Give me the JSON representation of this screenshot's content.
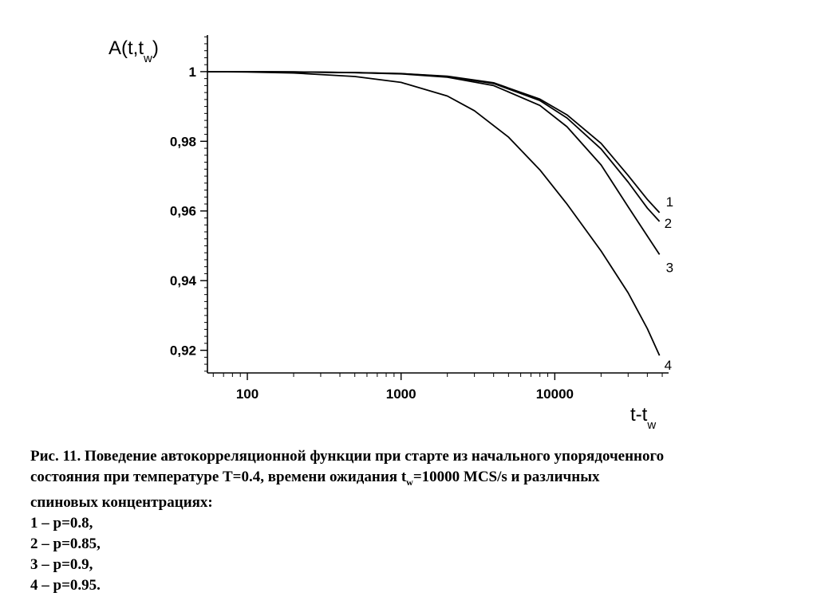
{
  "chart_data": {
    "type": "line",
    "xscale": "log",
    "xlim": [
      55,
      55000
    ],
    "ylim": [
      0.9135,
      1.0105
    ],
    "ylabel": {
      "main": "A(t,t",
      "sub": "w",
      "close": ")"
    },
    "xlabel": {
      "main": "t-t",
      "sub": "w"
    },
    "x_ticks": [
      100,
      1000,
      10000
    ],
    "x_tick_labels": [
      "100",
      "1000",
      "10000"
    ],
    "y_ticks": [
      0.92,
      0.94,
      0.96,
      0.98,
      1.0
    ],
    "y_tick_labels": [
      "0,92",
      "0,94",
      "0,96",
      "0,98",
      "1"
    ],
    "series": [
      {
        "name": "1",
        "x": [
          55,
          100,
          200,
          500,
          1000,
          2000,
          4000,
          8000,
          12000,
          20000,
          30000,
          40000,
          48000
        ],
        "y": [
          1.0,
          0.99998,
          0.9999,
          0.99975,
          0.99945,
          0.9987,
          0.9968,
          0.9921,
          0.9876,
          0.9794,
          0.9702,
          0.9633,
          0.9595
        ]
      },
      {
        "name": "2",
        "x": [
          55,
          100,
          200,
          500,
          1000,
          2000,
          4000,
          8000,
          12000,
          20000,
          30000,
          40000,
          48000
        ],
        "y": [
          1.0,
          0.99998,
          0.9999,
          0.99972,
          0.9994,
          0.9986,
          0.9966,
          0.9917,
          0.9867,
          0.9778,
          0.9683,
          0.9608,
          0.957
        ]
      },
      {
        "name": "3",
        "x": [
          55,
          100,
          200,
          500,
          1000,
          2000,
          4000,
          8000,
          12000,
          20000,
          30000,
          40000,
          48000
        ],
        "y": [
          1.0,
          0.99998,
          0.9999,
          0.9997,
          0.99935,
          0.9984,
          0.996,
          0.9903,
          0.9842,
          0.9732,
          0.9612,
          0.9528,
          0.9475
        ]
      },
      {
        "name": "4",
        "x": [
          55,
          100,
          200,
          500,
          1000,
          2000,
          3000,
          5000,
          8000,
          12000,
          20000,
          30000,
          40000,
          48000
        ],
        "y": [
          1.0,
          0.9999,
          0.9996,
          0.9986,
          0.9969,
          0.993,
          0.9888,
          0.9812,
          0.9718,
          0.962,
          0.9485,
          0.9365,
          0.9262,
          0.9185
        ]
      }
    ]
  },
  "caption": {
    "line1_prefix": "Рис. 11",
    "line1_rest": ". Поведение автокорреляционной функции при старте из начального упорядоченного",
    "line2_a": "состояния при температуре Т=0.4, времени ожидания t",
    "line2_sub": "w",
    "line2_b": "=10000 MCS/s и различных",
    "line3": "спиновых концентрациях:",
    "items": [
      "1 – р=0.8,",
      "2 – р=0.85,",
      "3 – р=0.9,",
      "4 – р=0.95."
    ]
  },
  "colors": {
    "line": "#000000",
    "background": "#ffffff"
  }
}
